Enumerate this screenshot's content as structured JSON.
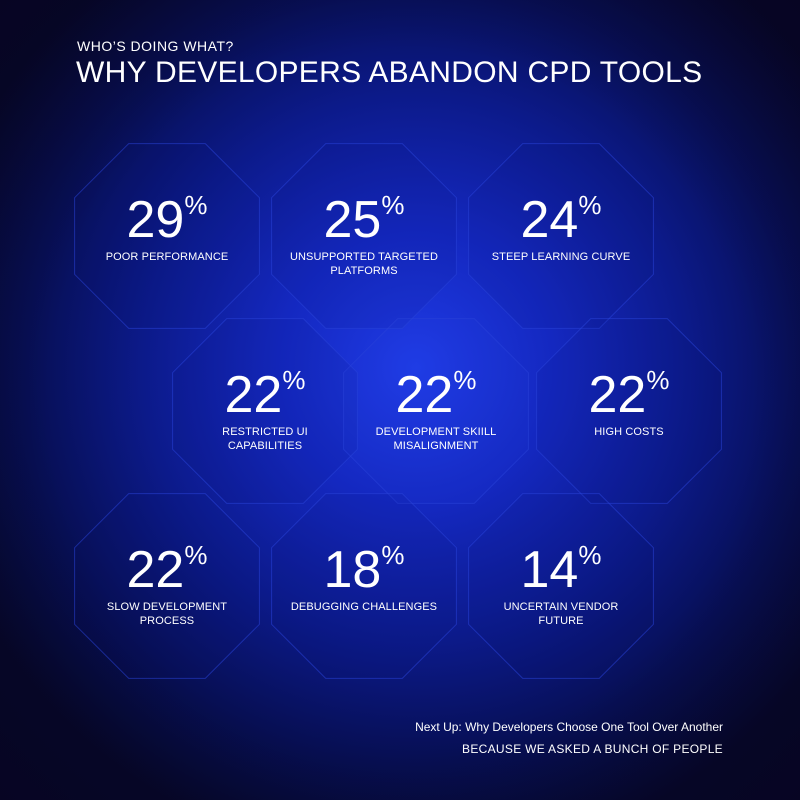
{
  "header": {
    "subtitle": "WHO’S DOING WHAT?",
    "title": "WHY DEVELOPERS ABANDON CPD TOOLS"
  },
  "chart_data": {
    "type": "table",
    "unit": "%",
    "items": [
      {
        "value": 29,
        "label": "POOR PERFORMANCE"
      },
      {
        "value": 25,
        "label": "UNSUPPORTED TARGETED\nPLATFORMS"
      },
      {
        "value": 24,
        "label": "STEEP LEARNING CURVE"
      },
      {
        "value": 22,
        "label": "RESTRICTED UI\nCAPABILITIES"
      },
      {
        "value": 22,
        "label": "DEVELOPMENT SKIILL\nMISALIGNMENT"
      },
      {
        "value": 22,
        "label": "HIGH COSTS"
      },
      {
        "value": 22,
        "label": "SLOW DEVELOPMENT\nPROCESS"
      },
      {
        "value": 18,
        "label": "DEBUGGING CHALLENGES"
      },
      {
        "value": 14,
        "label": "UNCERTAIN VENDOR\nFUTURE"
      }
    ]
  },
  "footer": {
    "next_up": "Next Up: Why Developers Choose One Tool Over Another",
    "tagline": "BECAUSE WE ASKED A BUNCH OF PEOPLE"
  },
  "colors": {
    "background_center": "#1f3be6",
    "background_edge": "#05082a",
    "hex_stroke": "#2a44d8",
    "text": "#ffffff"
  }
}
